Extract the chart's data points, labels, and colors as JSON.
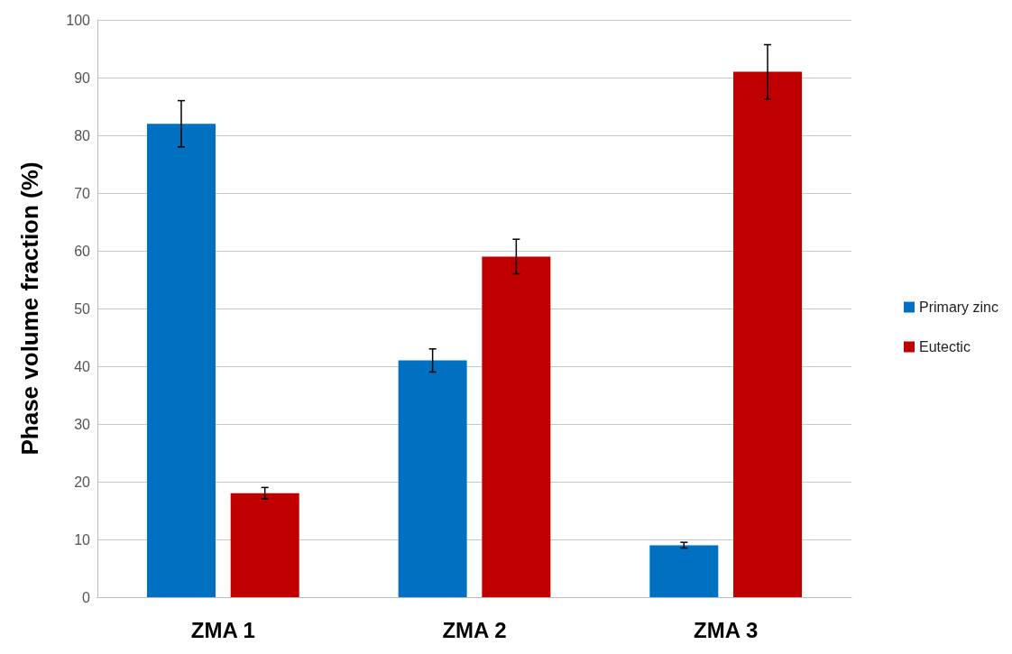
{
  "chart_data": {
    "type": "bar",
    "ylabel": "Phase volume fraction (%)",
    "categories": [
      "ZMA 1",
      "ZMA 2",
      "ZMA 3"
    ],
    "series": [
      {
        "name": "Primary zinc",
        "color": "#0070c0",
        "values": [
          82,
          41,
          9
        ],
        "errors": [
          4,
          2,
          0.5
        ]
      },
      {
        "name": "Eutectic",
        "color": "#c00000",
        "values": [
          18,
          59,
          91
        ],
        "errors": [
          1,
          3,
          4.7
        ]
      }
    ],
    "ylim": [
      0,
      100
    ],
    "yticks": [
      0,
      10,
      20,
      30,
      40,
      50,
      60,
      70,
      80,
      90,
      100
    ],
    "grid": "y",
    "legend": "right"
  }
}
